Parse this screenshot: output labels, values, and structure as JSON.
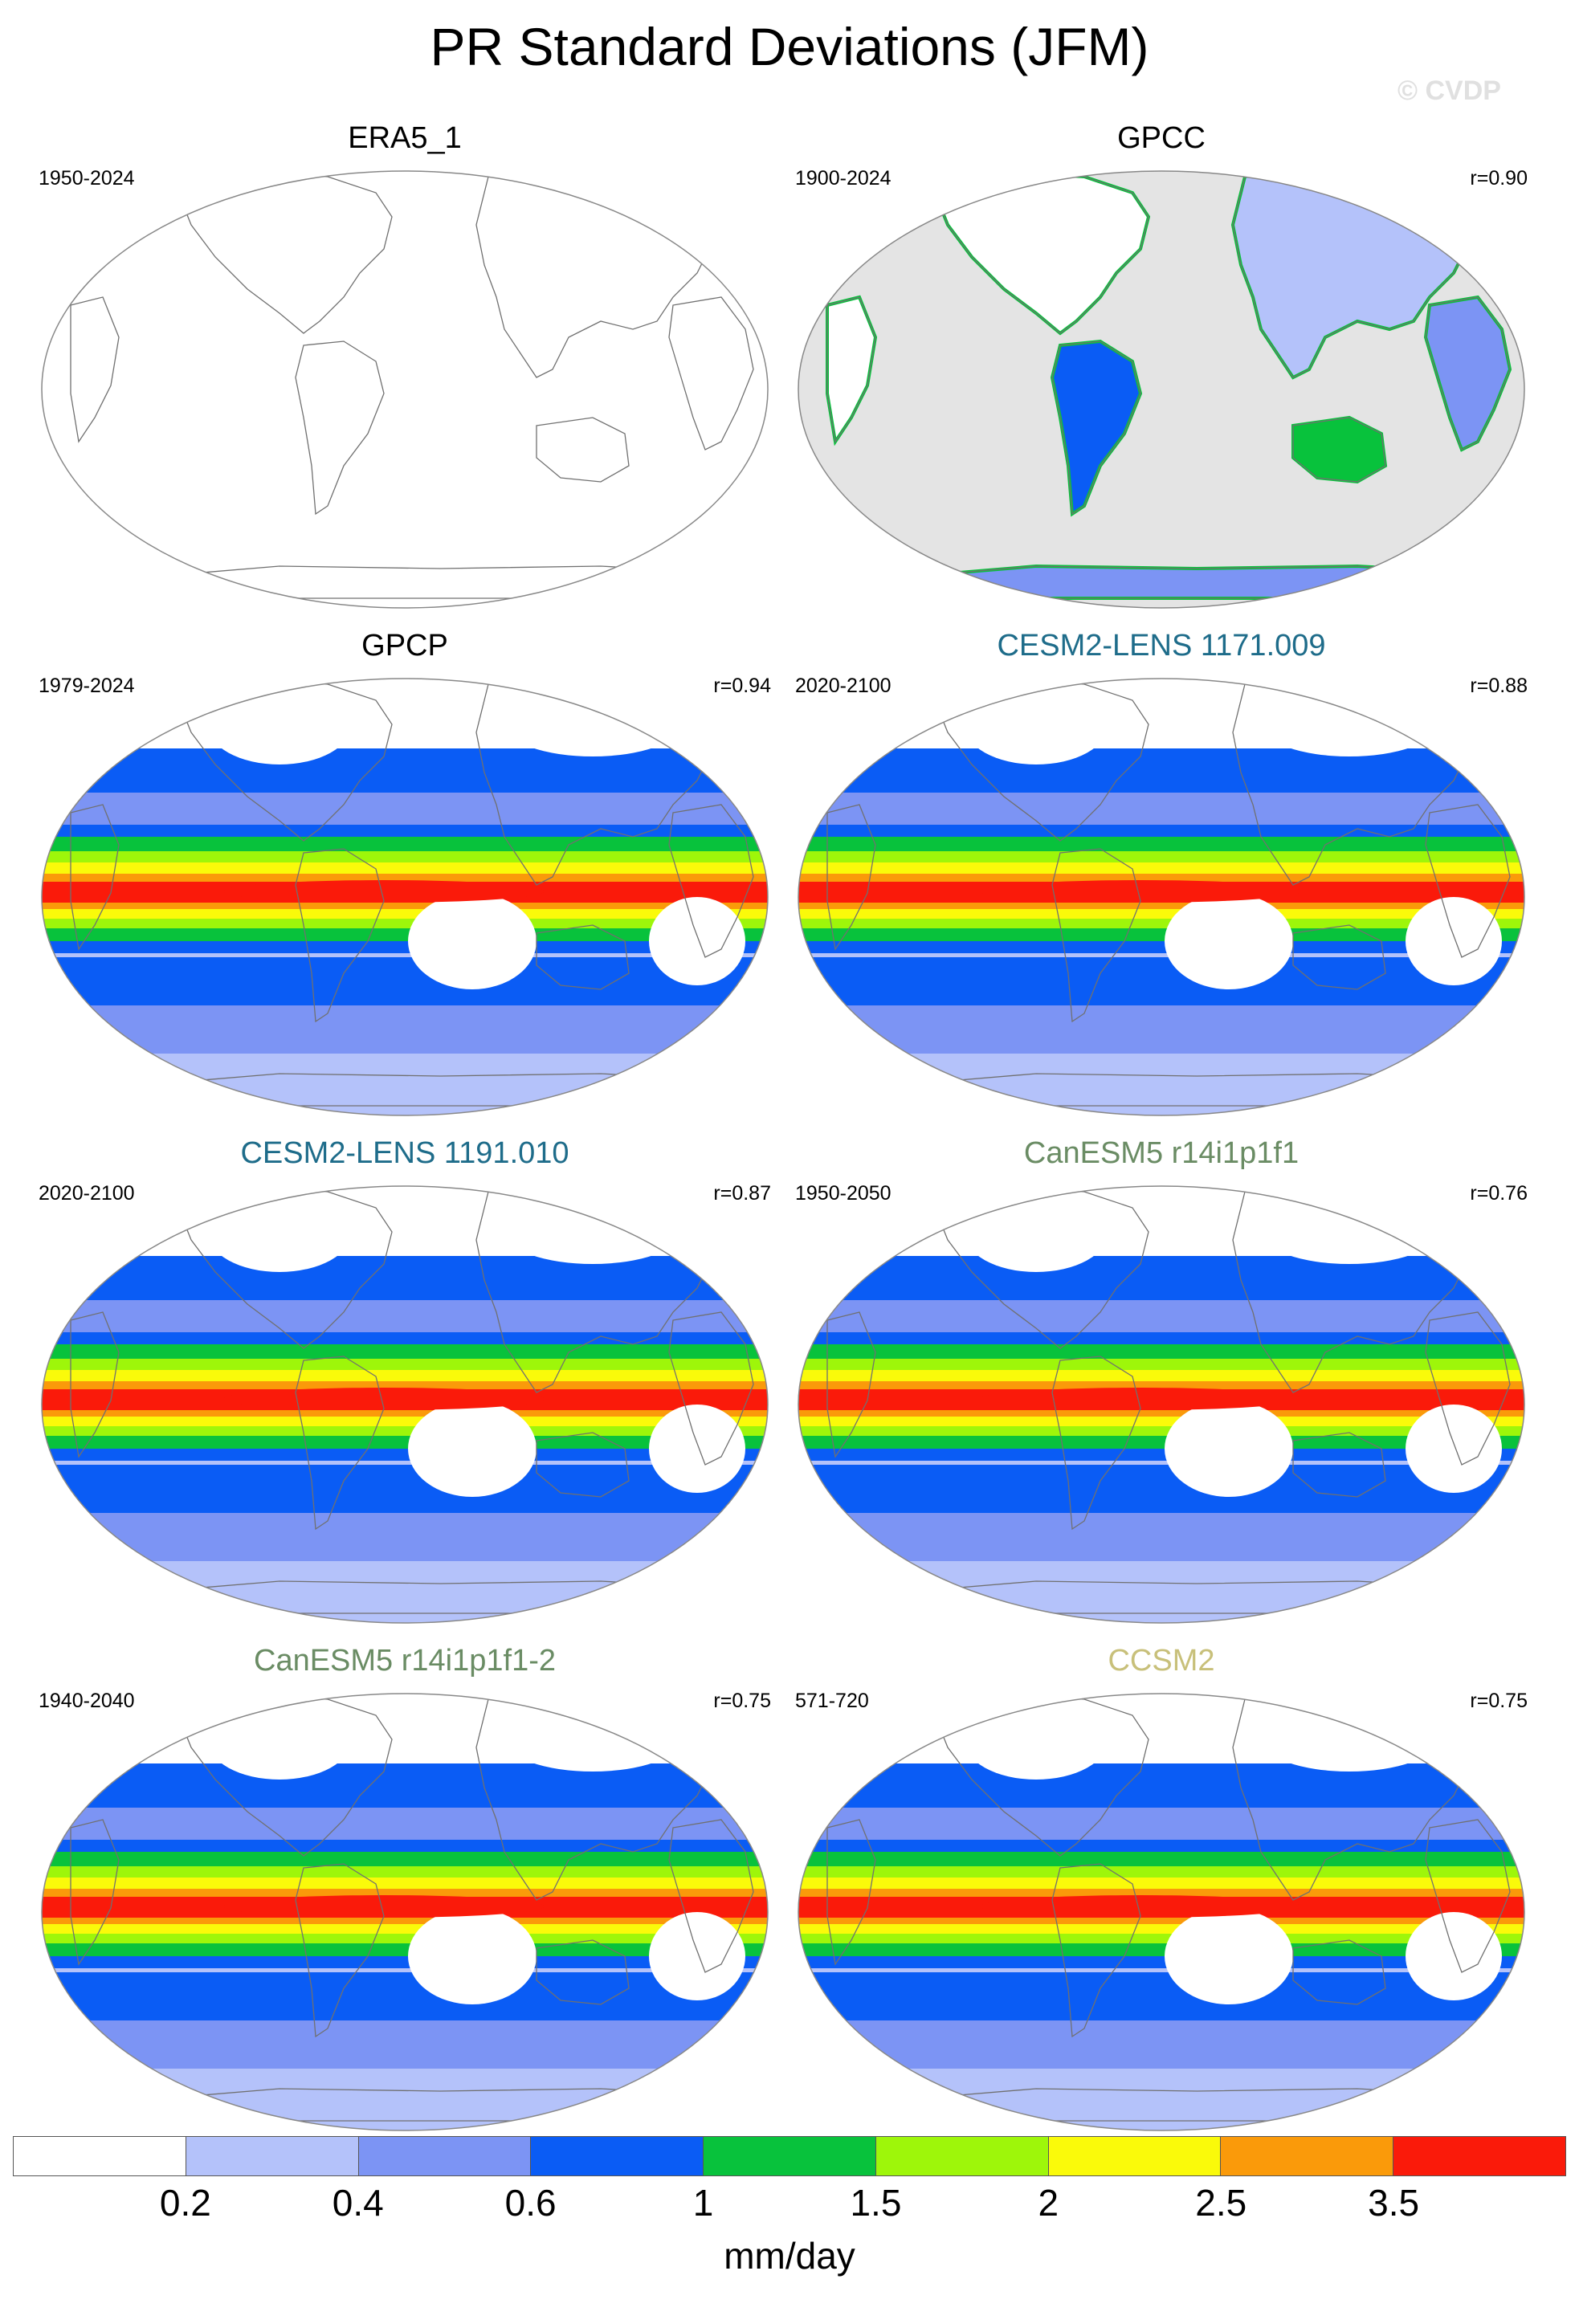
{
  "title": "PR Standard Deviations (JFM)",
  "watermark": "© CVDP",
  "panels": [
    {
      "title": "ERA5_1",
      "period": "1950-2024",
      "corr": "",
      "title_color": "#000000",
      "field": "none"
    },
    {
      "title": "GPCC",
      "period": "1900-2024",
      "corr": "r=0.90",
      "title_color": "#000000",
      "field": "land"
    },
    {
      "title": "GPCP",
      "period": "1979-2024",
      "corr": "r=0.94",
      "title_color": "#000000",
      "field": "full"
    },
    {
      "title": "CESM2-LENS 1171.009",
      "period": "2020-2100",
      "corr": "r=0.88",
      "title_color": "#1e6c8a",
      "field": "full"
    },
    {
      "title": "CESM2-LENS 1191.010",
      "period": "2020-2100",
      "corr": "r=0.87",
      "title_color": "#1e6c8a",
      "field": "full"
    },
    {
      "title": "CanESM5 r14i1p1f1",
      "period": "1950-2050",
      "corr": "r=0.76",
      "title_color": "#6a8c64",
      "field": "full"
    },
    {
      "title": "CanESM5 r14i1p1f1-2",
      "period": "1940-2040",
      "corr": "r=0.75",
      "title_color": "#6a8c64",
      "field": "full"
    },
    {
      "title": "CCSM2",
      "period": "571-720",
      "corr": "r=0.75",
      "title_color": "#c8c07a",
      "field": "full"
    }
  ],
  "colorbar": {
    "colors": [
      "#ffffff",
      "#b4c2fa",
      "#7c94f4",
      "#0a5cf5",
      "#08c23c",
      "#9ef60a",
      "#fafa0a",
      "#fa9a0a",
      "#fa1a0a"
    ],
    "labels": [
      "0.2",
      "0.4",
      "0.6",
      "1",
      "1.5",
      "2",
      "2.5",
      "3.5"
    ],
    "unit": "mm/day"
  },
  "chart_data": {
    "type": "heatmap",
    "title": "PR Standard Deviations (JFM)",
    "projection": "Robinson, Pacific-centered",
    "contour_levels": [
      0.2,
      0.4,
      0.6,
      1,
      1.5,
      2,
      2.5,
      3.5
    ],
    "units": "mm/day",
    "series": [
      {
        "name": "ERA5_1",
        "period": "1950-2024",
        "pattern_correlation": null
      },
      {
        "name": "GPCC",
        "period": "1900-2024",
        "pattern_correlation": 0.9
      },
      {
        "name": "GPCP",
        "period": "1979-2024",
        "pattern_correlation": 0.94
      },
      {
        "name": "CESM2-LENS 1171.009",
        "period": "2020-2100",
        "pattern_correlation": 0.88
      },
      {
        "name": "CESM2-LENS 1191.010",
        "period": "2020-2100",
        "pattern_correlation": 0.87
      },
      {
        "name": "CanESM5 r14i1p1f1",
        "period": "1950-2050",
        "pattern_correlation": 0.76
      },
      {
        "name": "CanESM5 r14i1p1f1-2",
        "period": "1940-2040",
        "pattern_correlation": 0.75
      },
      {
        "name": "CCSM2",
        "period": "571-720",
        "pattern_correlation": 0.75
      }
    ]
  }
}
